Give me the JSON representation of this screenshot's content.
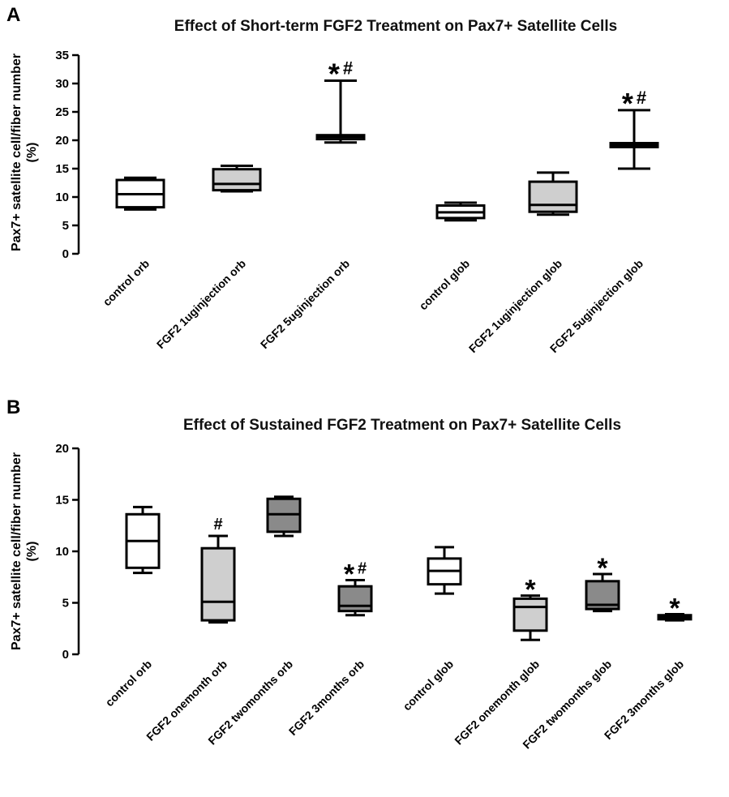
{
  "colors": {
    "white": "#ffffff",
    "lightgray": "#cfcfcf",
    "darkgray": "#8a8a8a"
  },
  "chart_data": [
    {
      "type": "box",
      "panel": "A",
      "title": "Effect of Short-term FGF2 Treatment on Pax7+ Satellite Cells",
      "ylabel_line1": "Pax7+ satellite cell/fiber number",
      "ylabel_line2": "(%)",
      "xlabel": "",
      "ylim": [
        0,
        35
      ],
      "yticks": [
        0,
        5,
        10,
        15,
        20,
        25,
        30,
        35
      ],
      "groups": [
        {
          "label": "control orb",
          "min": 7.8,
          "q1": 8.2,
          "median": 10.5,
          "q3": 13.0,
          "max": 13.4,
          "fill": "white",
          "annotation": ""
        },
        {
          "label": "FGF2 1uginjection orb",
          "min": 11.0,
          "q1": 11.2,
          "median": 12.3,
          "q3": 14.9,
          "max": 15.5,
          "fill": "lightgray",
          "annotation": ""
        },
        {
          "label": "FGF2 5uginjection orb",
          "min": 19.6,
          "q1": 20.2,
          "median": 20.6,
          "q3": 20.9,
          "max": 30.5,
          "fill": "white",
          "annotation": "*#"
        },
        {
          "label": "control glob",
          "min": 5.9,
          "q1": 6.3,
          "median": 7.3,
          "q3": 8.5,
          "max": 9.0,
          "fill": "white",
          "annotation": ""
        },
        {
          "label": "FGF2 1uginjection glob",
          "min": 6.9,
          "q1": 7.4,
          "median": 8.6,
          "q3": 12.7,
          "max": 14.3,
          "fill": "lightgray",
          "annotation": ""
        },
        {
          "label": "FGF2 5uginjection glob",
          "min": 15.0,
          "q1": 18.8,
          "median": 19.2,
          "q3": 19.5,
          "max": 25.3,
          "fill": "white",
          "annotation": "*#"
        }
      ]
    },
    {
      "type": "box",
      "panel": "B",
      "title": "Effect of Sustained FGF2 Treatment on Pax7+ Satellite Cells",
      "ylabel_line1": "Pax7+ satellite cell/fiber number",
      "ylabel_line2": "(%)",
      "xlabel": "",
      "ylim": [
        0,
        20
      ],
      "yticks": [
        0,
        5,
        10,
        15,
        20
      ],
      "groups": [
        {
          "label": "control orb",
          "min": 7.9,
          "q1": 8.4,
          "median": 11.0,
          "q3": 13.6,
          "max": 14.3,
          "fill": "white",
          "annotation": ""
        },
        {
          "label": "FGF2 onemonth orb",
          "min": 3.1,
          "q1": 3.3,
          "median": 5.1,
          "q3": 10.3,
          "max": 11.5,
          "fill": "lightgray",
          "annotation": "#"
        },
        {
          "label": "FGF2 twomonths orb",
          "min": 11.5,
          "q1": 11.9,
          "median": 13.6,
          "q3": 15.1,
          "max": 15.3,
          "fill": "darkgray",
          "annotation": ""
        },
        {
          "label": "FGF2 3months orb",
          "min": 3.8,
          "q1": 4.2,
          "median": 4.7,
          "q3": 6.6,
          "max": 7.2,
          "fill": "darkgray",
          "annotation": "*#"
        },
        {
          "label": "control glob",
          "min": 5.9,
          "q1": 6.8,
          "median": 8.1,
          "q3": 9.3,
          "max": 10.4,
          "fill": "white",
          "annotation": ""
        },
        {
          "label": "FGF2 onemonth glob",
          "min": 1.4,
          "q1": 2.3,
          "median": 4.6,
          "q3": 5.4,
          "max": 5.7,
          "fill": "lightgray",
          "annotation": "*"
        },
        {
          "label": "FGF2 twomonths glob",
          "min": 4.2,
          "q1": 4.4,
          "median": 4.8,
          "q3": 7.1,
          "max": 7.8,
          "fill": "darkgray",
          "annotation": "*"
        },
        {
          "label": "FGF2 3months glob",
          "min": 3.3,
          "q1": 3.4,
          "median": 3.6,
          "q3": 3.8,
          "max": 3.9,
          "fill": "darkgray",
          "annotation": "*"
        }
      ]
    }
  ]
}
